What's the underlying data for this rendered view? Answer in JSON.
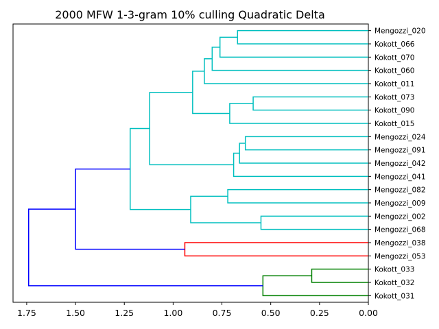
{
  "chart_data": {
    "type": "dendrogram",
    "title": "2000 MFW 1-3-gram 10% culling Quadratic Delta",
    "orientation": "left",
    "xlim": [
      1.82,
      0.0
    ],
    "xticks": [
      1.75,
      1.5,
      1.25,
      1.0,
      0.75,
      0.5,
      0.25,
      0.0
    ],
    "xtick_labels": [
      "1.75",
      "1.50",
      "1.25",
      "1.00",
      "0.75",
      "0.50",
      "0.25",
      "0.00"
    ],
    "leaves": [
      "Mengozzi_020",
      "Kokott_066",
      "Kokott_070",
      "Kokott_060",
      "Kokott_011",
      "Kokott_073",
      "Kokott_090",
      "Kokott_015",
      "Mengozzi_024",
      "Mengozzi_091",
      "Mengozzi_042",
      "Mengozzi_041",
      "Mengozzi_082",
      "Mengozzi_009",
      "Mengozzi_002",
      "Mengozzi_068",
      "Mengozzi_038",
      "Mengozzi_053",
      "Kokott_033",
      "Kokott_032",
      "Kokott_031"
    ],
    "colors": {
      "cyan": "#00bfbf",
      "red": "#ff0000",
      "green": "#008000",
      "blue": "#0000ff"
    },
    "merges": [
      {
        "id": "m1",
        "a": "L0",
        "b": "L1",
        "height": 0.67,
        "color": "cyan"
      },
      {
        "id": "m2",
        "a": "m1",
        "b": "L2",
        "height": 0.76,
        "color": "cyan"
      },
      {
        "id": "m3",
        "a": "m2",
        "b": "L3",
        "height": 0.8,
        "color": "cyan"
      },
      {
        "id": "m4",
        "a": "m3",
        "b": "L4",
        "height": 0.84,
        "color": "cyan"
      },
      {
        "id": "m5",
        "a": "L5",
        "b": "L6",
        "height": 0.59,
        "color": "cyan"
      },
      {
        "id": "m6",
        "a": "m5",
        "b": "L7",
        "height": 0.71,
        "color": "cyan"
      },
      {
        "id": "m7",
        "a": "m4",
        "b": "m6",
        "height": 0.9,
        "color": "cyan"
      },
      {
        "id": "m8",
        "a": "L8",
        "b": "L9",
        "height": 0.63,
        "color": "cyan"
      },
      {
        "id": "m9",
        "a": "m8",
        "b": "L10",
        "height": 0.66,
        "color": "cyan"
      },
      {
        "id": "m10",
        "a": "m9",
        "b": "L11",
        "height": 0.69,
        "color": "cyan"
      },
      {
        "id": "m11",
        "a": "m7",
        "b": "m10",
        "height": 1.12,
        "color": "cyan"
      },
      {
        "id": "m12",
        "a": "L12",
        "b": "L13",
        "height": 0.72,
        "color": "cyan"
      },
      {
        "id": "m13",
        "a": "L14",
        "b": "L15",
        "height": 0.55,
        "color": "cyan"
      },
      {
        "id": "m14",
        "a": "m12",
        "b": "m13",
        "height": 0.91,
        "color": "cyan"
      },
      {
        "id": "m15",
        "a": "m11",
        "b": "m14",
        "height": 1.22,
        "color": "cyan"
      },
      {
        "id": "m16",
        "a": "L16",
        "b": "L17",
        "height": 0.94,
        "color": "red"
      },
      {
        "id": "m17",
        "a": "m15",
        "b": "m16",
        "height": 1.5,
        "color": "blue"
      },
      {
        "id": "m18",
        "a": "L18",
        "b": "L19",
        "height": 0.29,
        "color": "green"
      },
      {
        "id": "m19",
        "a": "m18",
        "b": "L20",
        "height": 0.54,
        "color": "green"
      },
      {
        "id": "m20",
        "a": "m17",
        "b": "m19",
        "height": 1.74,
        "color": "blue"
      }
    ]
  }
}
